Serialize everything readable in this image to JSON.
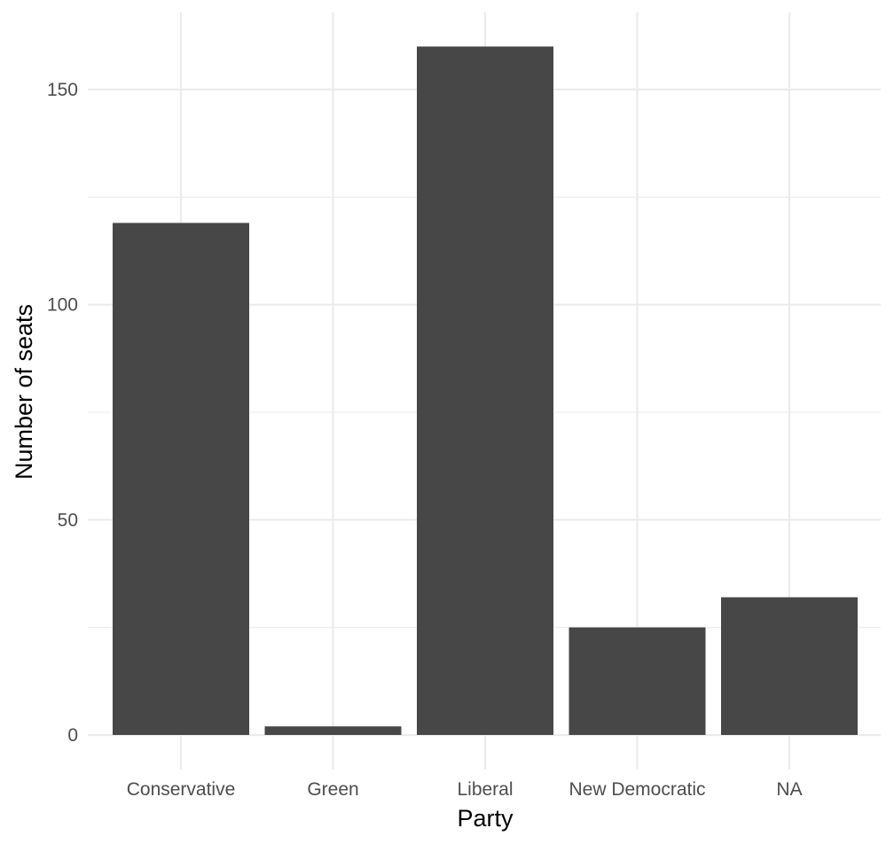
{
  "chart_data": {
    "type": "bar",
    "categories": [
      "Conservative",
      "Green",
      "Liberal",
      "New Democratic",
      "NA"
    ],
    "values": [
      119,
      2,
      160,
      25,
      32
    ],
    "xlabel": "Party",
    "ylabel": "Number of seats",
    "ylim": [
      0,
      160
    ],
    "yticks": [
      0,
      50,
      100,
      150
    ],
    "grid": true,
    "bar_color": "#474747",
    "grid_color": "#ebebeb"
  }
}
